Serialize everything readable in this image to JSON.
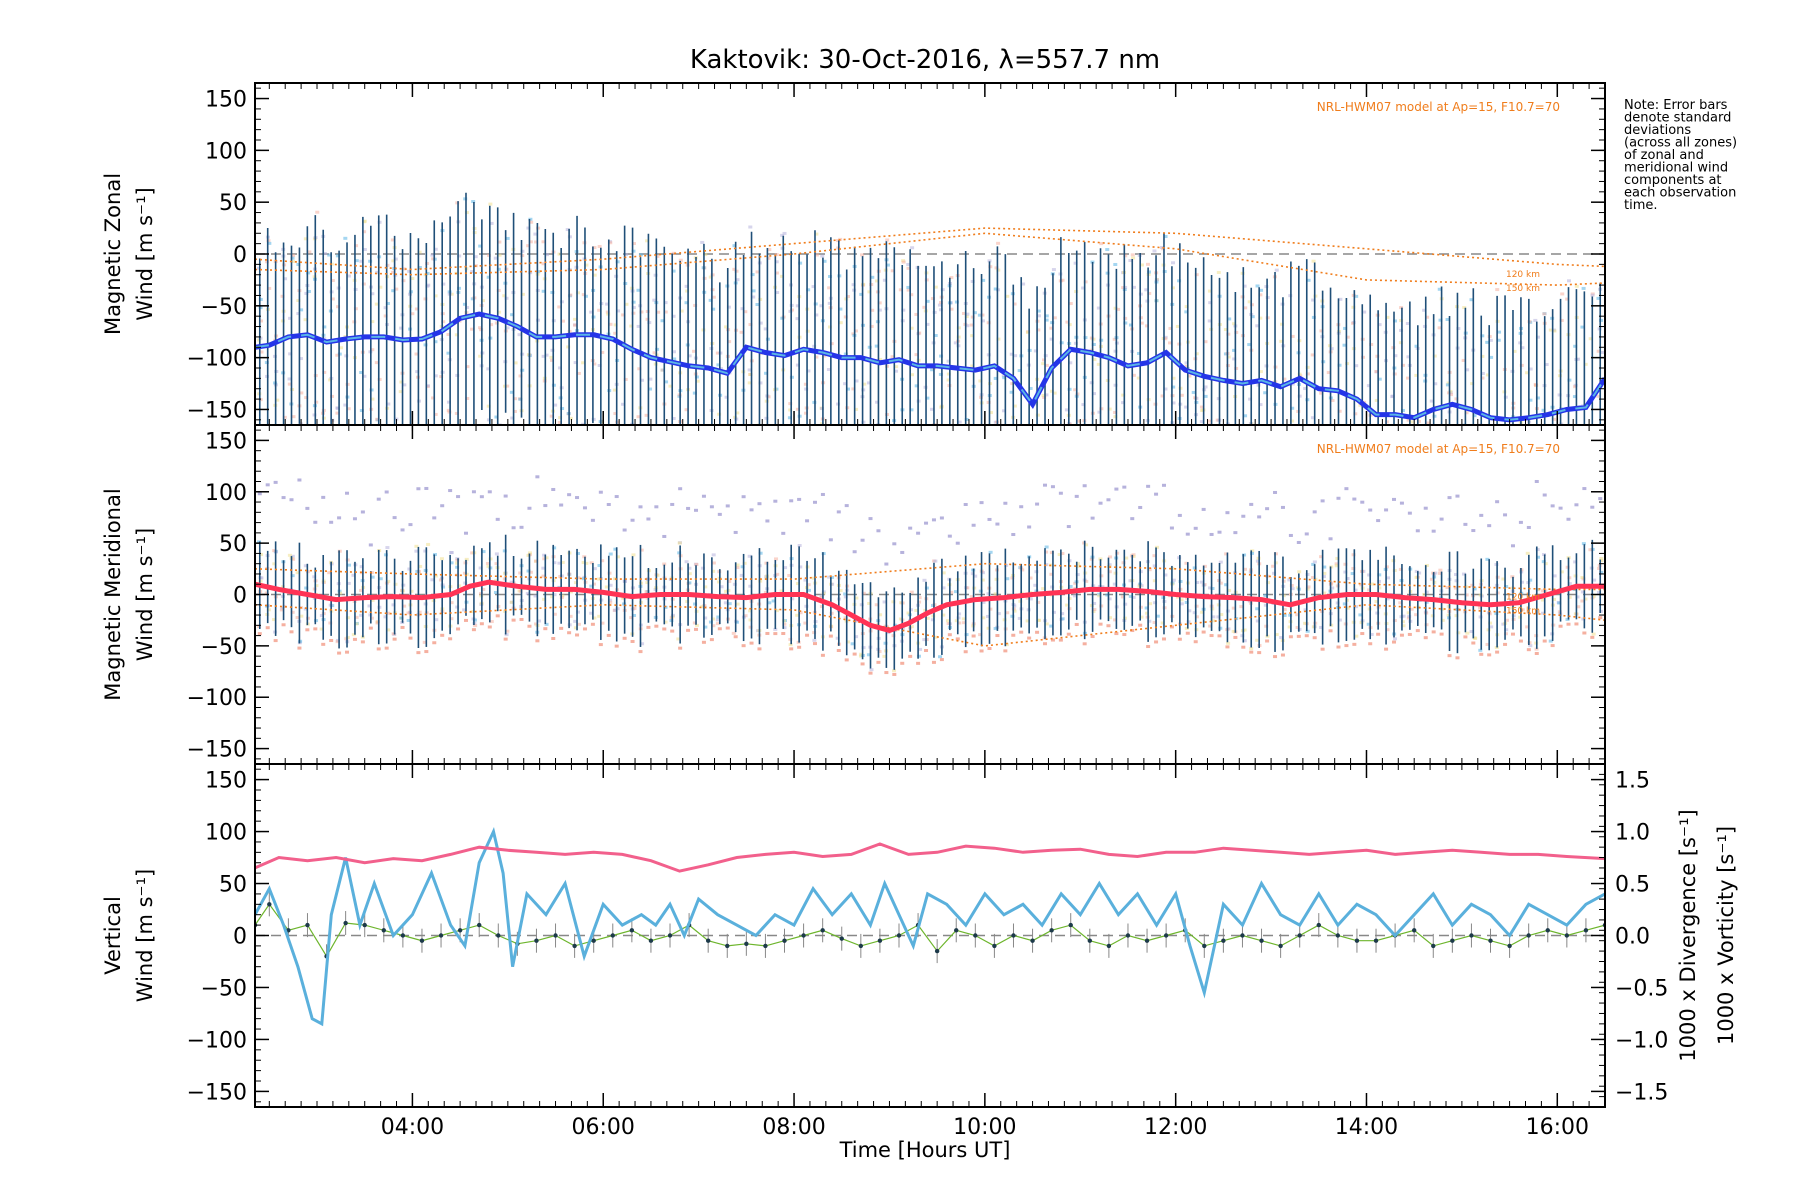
{
  "colors": {
    "zonal": "#2535e8",
    "zonal_light": "#5ab4e6",
    "meridional": "#ff3355",
    "errorbar": "#1f4f78",
    "model": "#f07d1c",
    "vertical": "#6db52c",
    "divergence": "#5ab0dc",
    "vorticity": "#f2608c",
    "scatter_purple": "#b6b2dc",
    "scatter_pink": "#f5b0a0",
    "scatter_yellow": "#f0e090"
  },
  "chart_data": {
    "title": "Kaktovik: 30-Oct-2016, λ=557.7 nm",
    "note": [
      "Note: Error bars",
      "denote standard",
      "deviations",
      "(across all zones)",
      "of zonal and",
      "meridional wind",
      "components at",
      "each observation",
      "time."
    ],
    "model_label": "NRL-HWM07 model at Ap=15, F10.7=70",
    "model_alt_labels": [
      "120 km",
      "150 km"
    ],
    "xlabel": "Time [Hours UT]",
    "xlim": [
      2.35,
      16.5
    ],
    "xticks": [
      4,
      6,
      8,
      10,
      12,
      14,
      16
    ],
    "xtick_labels": [
      "04:00",
      "06:00",
      "08:00",
      "10:00",
      "12:00",
      "14:00",
      "16:00"
    ],
    "panels": [
      {
        "type": "line",
        "ylabel": [
          "Magnetic Zonal",
          "Wind [m s⁻¹]"
        ],
        "ylim": [
          -165,
          165
        ],
        "yticks": [
          -150,
          -100,
          -50,
          0,
          50,
          100,
          150
        ],
        "ytick_labels": [
          "−150",
          "−100",
          "−50",
          "0",
          "50",
          "100",
          "150"
        ],
        "series": [
          {
            "x": [
              2.35,
              2.5,
              2.7,
              2.9,
              3.1,
              3.3,
              3.5,
              3.7,
              3.9,
              4.1,
              4.3,
              4.5,
              4.7,
              4.9,
              5.1,
              5.3,
              5.5,
              5.7,
              5.9,
              6.1,
              6.3,
              6.5,
              6.7,
              6.9,
              7.1,
              7.3,
              7.5,
              7.7,
              7.9,
              8.1,
              8.3,
              8.5,
              8.7,
              8.9,
              9.1,
              9.3,
              9.5,
              9.7,
              9.9,
              10.1,
              10.3,
              10.5,
              10.7,
              10.9,
              11.1,
              11.3,
              11.5,
              11.7,
              11.9,
              12.1,
              12.3,
              12.5,
              12.7,
              12.9,
              13.1,
              13.3,
              13.5,
              13.7,
              13.9,
              14.1,
              14.3,
              14.5,
              14.7,
              14.9,
              15.1,
              15.3,
              15.5,
              15.7,
              15.9,
              16.1,
              16.3,
              16.5
            ],
            "y": [
              -90,
              -88,
              -80,
              -78,
              -85,
              -82,
              -80,
              -80,
              -83,
              -82,
              -75,
              -62,
              -58,
              -62,
              -70,
              -80,
              -80,
              -78,
              -78,
              -82,
              -92,
              -100,
              -104,
              -108,
              -110,
              -115,
              -90,
              -95,
              -98,
              -92,
              -95,
              -100,
              -100,
              -105,
              -102,
              -108,
              -108,
              -110,
              -112,
              -108,
              -120,
              -145,
              -110,
              -92,
              -95,
              -100,
              -108,
              -105,
              -95,
              -112,
              -118,
              -122,
              -125,
              -122,
              -128,
              -120,
              -130,
              -132,
              -140,
              -155,
              -155,
              -158,
              -150,
              -145,
              -150,
              -158,
              -160,
              -158,
              -155,
              -150,
              -148,
              -120
            ]
          }
        ],
        "model": [
          {
            "x": [
              2.35,
              4,
              6,
              8,
              10,
              12,
              14,
              16,
              16.5
            ],
            "y": [
              -5,
              -15,
              -5,
              10,
              25,
              20,
              5,
              -10,
              -12
            ]
          },
          {
            "x": [
              2.35,
              4,
              6,
              8,
              10,
              12,
              14,
              16,
              16.5
            ],
            "y": [
              -15,
              -20,
              -15,
              0,
              20,
              5,
              -25,
              -30,
              -28
            ]
          }
        ]
      },
      {
        "type": "line",
        "ylabel": [
          "Magnetic Meridional",
          "Wind [m s⁻¹]"
        ],
        "ylim": [
          -165,
          165
        ],
        "yticks": [
          -150,
          -100,
          -50,
          0,
          50,
          100,
          150
        ],
        "ytick_labels": [
          "−150",
          "−100",
          "−50",
          "0",
          "50",
          "100",
          "150"
        ],
        "series": [
          {
            "x": [
              2.35,
              2.6,
              2.9,
              3.2,
              3.5,
              3.8,
              4.1,
              4.4,
              4.6,
              4.8,
              5.1,
              5.4,
              5.7,
              6.0,
              6.3,
              6.6,
              6.9,
              7.2,
              7.5,
              7.8,
              8.1,
              8.4,
              8.6,
              8.8,
              9.0,
              9.2,
              9.4,
              9.6,
              9.9,
              10.2,
              10.5,
              10.8,
              11.1,
              11.4,
              11.7,
              12.0,
              12.3,
              12.6,
              12.9,
              13.2,
              13.5,
              13.8,
              14.1,
              14.4,
              14.7,
              15.0,
              15.3,
              15.6,
              15.9,
              16.2,
              16.5
            ],
            "y": [
              10,
              5,
              0,
              -5,
              -3,
              -2,
              -3,
              0,
              8,
              12,
              8,
              5,
              5,
              2,
              -2,
              0,
              0,
              -2,
              -3,
              0,
              0,
              -10,
              -20,
              -30,
              -35,
              -28,
              -18,
              -10,
              -5,
              -3,
              0,
              2,
              5,
              5,
              3,
              0,
              -2,
              -3,
              -5,
              -10,
              -3,
              0,
              0,
              -3,
              -5,
              -8,
              -10,
              -8,
              0,
              8,
              8
            ]
          }
        ],
        "model": [
          {
            "x": [
              2.35,
              4,
              6,
              8,
              10,
              12,
              14,
              16,
              16.5
            ],
            "y": [
              25,
              20,
              15,
              15,
              30,
              25,
              10,
              5,
              5
            ]
          },
          {
            "x": [
              2.35,
              4,
              6,
              8,
              10,
              12,
              14,
              16,
              16.5
            ],
            "y": [
              -10,
              -20,
              -10,
              -15,
              -50,
              -30,
              -10,
              -20,
              -25
            ]
          }
        ]
      },
      {
        "type": "line",
        "ylabel": [
          "Vertical",
          "Wind [m s⁻¹]"
        ],
        "ylim": [
          -165,
          165
        ],
        "yticks": [
          -150,
          -100,
          -50,
          0,
          50,
          100,
          150
        ],
        "ytick_labels": [
          "−150",
          "−100",
          "−50",
          "0",
          "50",
          "100",
          "150"
        ],
        "y2label_div": "1000 x Divergence [s⁻¹]",
        "y2label_vort": "1000 x Vorticity [s⁻¹]",
        "y2lim": [
          -1.65,
          1.65
        ],
        "y2ticks": [
          -1.5,
          -1.0,
          -0.5,
          0.0,
          0.5,
          1.0,
          1.5
        ],
        "y2tick_labels": [
          "−1.5",
          "−1.0",
          "−0.5",
          "0.0",
          "0.5",
          "1.0",
          "1.5"
        ],
        "series": [
          {
            "name": "vertical",
            "x": [
              2.35,
              2.5,
              2.7,
              2.9,
              3.1,
              3.3,
              3.5,
              3.7,
              3.9,
              4.1,
              4.3,
              4.5,
              4.7,
              4.9,
              5.1,
              5.3,
              5.5,
              5.7,
              5.9,
              6.1,
              6.3,
              6.5,
              6.7,
              6.9,
              7.1,
              7.3,
              7.5,
              7.7,
              7.9,
              8.1,
              8.3,
              8.5,
              8.7,
              8.9,
              9.1,
              9.3,
              9.5,
              9.7,
              9.9,
              10.1,
              10.3,
              10.5,
              10.7,
              10.9,
              11.1,
              11.3,
              11.5,
              11.7,
              11.9,
              12.1,
              12.3,
              12.5,
              12.7,
              12.9,
              13.1,
              13.3,
              13.5,
              13.7,
              13.9,
              14.1,
              14.3,
              14.5,
              14.7,
              14.9,
              15.1,
              15.3,
              15.5,
              15.7,
              15.9,
              16.1,
              16.3,
              16.5
            ],
            "y": [
              10,
              30,
              5,
              10,
              -20,
              12,
              10,
              5,
              0,
              -5,
              0,
              5,
              10,
              0,
              -8,
              -5,
              0,
              -10,
              -5,
              0,
              5,
              -5,
              0,
              10,
              -5,
              -10,
              -8,
              -10,
              -5,
              0,
              5,
              -3,
              -10,
              -5,
              0,
              10,
              -15,
              5,
              0,
              -10,
              0,
              -5,
              5,
              10,
              -5,
              -10,
              0,
              -5,
              0,
              5,
              -10,
              -5,
              0,
              -5,
              -10,
              0,
              10,
              0,
              -5,
              -5,
              0,
              5,
              -10,
              -5,
              0,
              -5,
              -10,
              0,
              5,
              0,
              5,
              10
            ]
          },
          {
            "name": "divergence",
            "x": [
              2.35,
              2.5,
              2.65,
              2.8,
              2.95,
              3.05,
              3.15,
              3.3,
              3.45,
              3.6,
              3.8,
              4.0,
              4.2,
              4.4,
              4.55,
              4.7,
              4.85,
              4.95,
              5.05,
              5.2,
              5.4,
              5.6,
              5.8,
              6.0,
              6.2,
              6.4,
              6.55,
              6.7,
              6.85,
              7.0,
              7.2,
              7.4,
              7.6,
              7.8,
              8.0,
              8.2,
              8.4,
              8.6,
              8.8,
              8.95,
              9.1,
              9.25,
              9.4,
              9.6,
              9.8,
              10.0,
              10.2,
              10.4,
              10.6,
              10.8,
              11.0,
              11.2,
              11.4,
              11.6,
              11.8,
              12.0,
              12.15,
              12.3,
              12.5,
              12.7,
              12.9,
              13.1,
              13.3,
              13.5,
              13.7,
              13.9,
              14.1,
              14.3,
              14.5,
              14.7,
              14.9,
              15.1,
              15.3,
              15.5,
              15.7,
              15.9,
              16.1,
              16.3,
              16.5
            ],
            "y": [
              0.2,
              0.45,
              0.1,
              -0.3,
              -0.8,
              -0.85,
              0.2,
              0.75,
              0.1,
              0.5,
              0.0,
              0.2,
              0.6,
              0.1,
              -0.1,
              0.7,
              1.0,
              0.6,
              -0.3,
              0.4,
              0.2,
              0.5,
              -0.2,
              0.3,
              0.1,
              0.2,
              0.1,
              0.3,
              0.0,
              0.35,
              0.2,
              0.1,
              0.0,
              0.2,
              0.1,
              0.45,
              0.2,
              0.4,
              0.1,
              0.5,
              0.2,
              -0.1,
              0.4,
              0.3,
              0.1,
              0.4,
              0.2,
              0.3,
              0.1,
              0.4,
              0.2,
              0.5,
              0.2,
              0.4,
              0.1,
              0.4,
              -0.1,
              -0.55,
              0.3,
              0.1,
              0.5,
              0.2,
              0.1,
              0.4,
              0.1,
              0.3,
              0.2,
              0.0,
              0.2,
              0.4,
              0.1,
              0.3,
              0.2,
              0.0,
              0.3,
              0.2,
              0.1,
              0.3,
              0.4
            ]
          },
          {
            "name": "vorticity",
            "x": [
              2.35,
              2.6,
              2.9,
              3.2,
              3.5,
              3.8,
              4.1,
              4.4,
              4.7,
              5.0,
              5.3,
              5.6,
              5.9,
              6.2,
              6.5,
              6.8,
              7.1,
              7.4,
              7.7,
              8.0,
              8.3,
              8.6,
              8.9,
              9.2,
              9.5,
              9.8,
              10.1,
              10.4,
              10.7,
              11.0,
              11.3,
              11.6,
              11.9,
              12.2,
              12.5,
              12.8,
              13.1,
              13.4,
              13.7,
              14.0,
              14.3,
              14.6,
              14.9,
              15.2,
              15.5,
              15.8,
              16.1,
              16.5
            ],
            "y": [
              0.65,
              0.75,
              0.72,
              0.75,
              0.7,
              0.74,
              0.72,
              0.78,
              0.85,
              0.82,
              0.8,
              0.78,
              0.8,
              0.78,
              0.72,
              0.62,
              0.68,
              0.75,
              0.78,
              0.8,
              0.76,
              0.78,
              0.88,
              0.78,
              0.8,
              0.86,
              0.84,
              0.8,
              0.82,
              0.83,
              0.78,
              0.76,
              0.8,
              0.8,
              0.84,
              0.82,
              0.8,
              0.78,
              0.8,
              0.82,
              0.78,
              0.8,
              0.82,
              0.8,
              0.78,
              0.78,
              0.76,
              0.74
            ]
          }
        ]
      }
    ]
  }
}
